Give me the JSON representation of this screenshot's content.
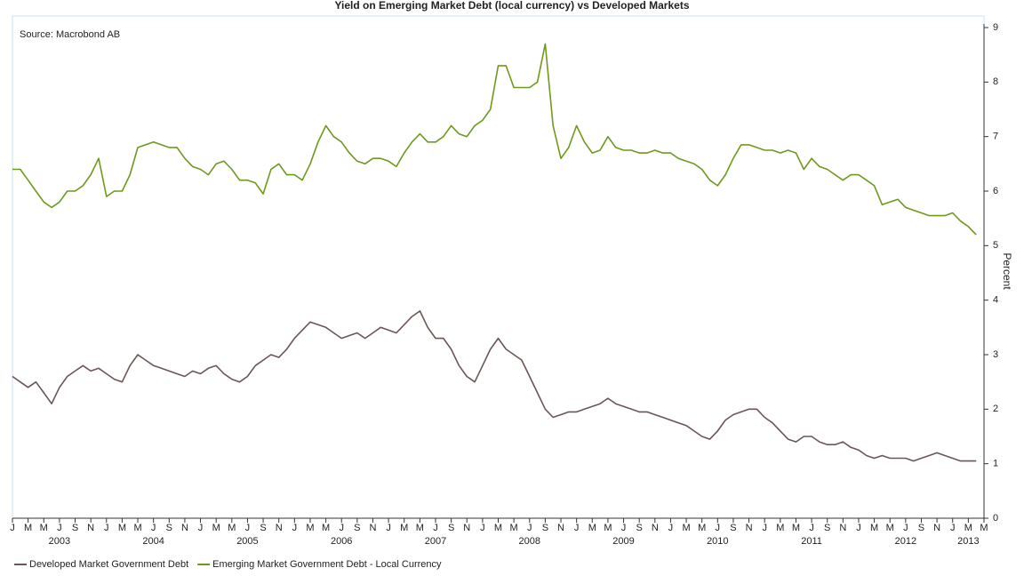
{
  "chart_data": {
    "type": "line",
    "title": "Yield on Emerging Market Debt (local currency) vs Developed Markets",
    "annotation": "Source: Macrobond AB",
    "ylabel": "Percent",
    "x": [
      "2003-01",
      "2003-02",
      "2003-03",
      "2003-04",
      "2003-05",
      "2003-06",
      "2003-07",
      "2003-08",
      "2003-09",
      "2003-10",
      "2003-11",
      "2003-12",
      "2004-01",
      "2004-02",
      "2004-03",
      "2004-04",
      "2004-05",
      "2004-06",
      "2004-07",
      "2004-08",
      "2004-09",
      "2004-10",
      "2004-11",
      "2004-12",
      "2005-01",
      "2005-02",
      "2005-03",
      "2005-04",
      "2005-05",
      "2005-06",
      "2005-07",
      "2005-08",
      "2005-09",
      "2005-10",
      "2005-11",
      "2005-12",
      "2006-01",
      "2006-02",
      "2006-03",
      "2006-04",
      "2006-05",
      "2006-06",
      "2006-07",
      "2006-08",
      "2006-09",
      "2006-10",
      "2006-11",
      "2006-12",
      "2007-01",
      "2007-02",
      "2007-03",
      "2007-04",
      "2007-05",
      "2007-06",
      "2007-07",
      "2007-08",
      "2007-09",
      "2007-10",
      "2007-11",
      "2007-12",
      "2008-01",
      "2008-02",
      "2008-03",
      "2008-04",
      "2008-05",
      "2008-06",
      "2008-07",
      "2008-08",
      "2008-09",
      "2008-10",
      "2008-11",
      "2008-12",
      "2009-01",
      "2009-02",
      "2009-03",
      "2009-04",
      "2009-05",
      "2009-06",
      "2009-07",
      "2009-08",
      "2009-09",
      "2009-10",
      "2009-11",
      "2009-12",
      "2010-01",
      "2010-02",
      "2010-03",
      "2010-04",
      "2010-05",
      "2010-06",
      "2010-07",
      "2010-08",
      "2010-09",
      "2010-10",
      "2010-11",
      "2010-12",
      "2011-01",
      "2011-02",
      "2011-03",
      "2011-04",
      "2011-05",
      "2011-06",
      "2011-07",
      "2011-08",
      "2011-09",
      "2011-10",
      "2011-11",
      "2011-12",
      "2012-01",
      "2012-02",
      "2012-03",
      "2012-04",
      "2012-05",
      "2012-06",
      "2012-07",
      "2012-08",
      "2012-09",
      "2012-10",
      "2012-11",
      "2012-12",
      "2013-01",
      "2013-02",
      "2013-03",
      "2013-04"
    ],
    "series": [
      {
        "name": "Developed Market Government Debt",
        "color": "#6b5656",
        "values": [
          2.6,
          2.5,
          2.4,
          2.5,
          2.3,
          2.1,
          2.4,
          2.6,
          2.7,
          2.8,
          2.7,
          2.75,
          2.65,
          2.55,
          2.5,
          2.8,
          3.0,
          2.9,
          2.8,
          2.75,
          2.7,
          2.65,
          2.6,
          2.7,
          2.65,
          2.75,
          2.8,
          2.65,
          2.55,
          2.5,
          2.6,
          2.8,
          2.9,
          3.0,
          2.95,
          3.1,
          3.3,
          3.45,
          3.6,
          3.55,
          3.5,
          3.4,
          3.3,
          3.35,
          3.4,
          3.3,
          3.4,
          3.5,
          3.45,
          3.4,
          3.55,
          3.7,
          3.8,
          3.5,
          3.3,
          3.3,
          3.1,
          2.8,
          2.6,
          2.5,
          2.8,
          3.1,
          3.3,
          3.1,
          3.0,
          2.9,
          2.6,
          2.3,
          2.0,
          1.85,
          1.9,
          1.95,
          1.95,
          2.0,
          2.05,
          2.1,
          2.2,
          2.1,
          2.05,
          2.0,
          1.95,
          1.95,
          1.9,
          1.85,
          1.8,
          1.75,
          1.7,
          1.6,
          1.5,
          1.45,
          1.6,
          1.8,
          1.9,
          1.95,
          2.0,
          2.0,
          1.85,
          1.75,
          1.6,
          1.45,
          1.4,
          1.5,
          1.5,
          1.4,
          1.35,
          1.35,
          1.4,
          1.3,
          1.25,
          1.15,
          1.1,
          1.15,
          1.1,
          1.1,
          1.1,
          1.05,
          1.1,
          1.15,
          1.2,
          1.15,
          1.1,
          1.05,
          1.05,
          1.05
        ]
      },
      {
        "name": "Emerging Market Government Debt - Local Currency",
        "color": "#6e9a1c",
        "values": [
          6.4,
          6.4,
          6.2,
          6.0,
          5.8,
          5.7,
          5.8,
          6.0,
          6.0,
          6.1,
          6.3,
          6.6,
          5.9,
          6.0,
          6.0,
          6.3,
          6.8,
          6.85,
          6.9,
          6.85,
          6.8,
          6.8,
          6.6,
          6.45,
          6.4,
          6.3,
          6.5,
          6.55,
          6.4,
          6.2,
          6.2,
          6.15,
          5.95,
          6.4,
          6.5,
          6.3,
          6.3,
          6.2,
          6.5,
          6.9,
          7.2,
          7.0,
          6.9,
          6.7,
          6.55,
          6.5,
          6.6,
          6.6,
          6.55,
          6.45,
          6.7,
          6.9,
          7.05,
          6.9,
          6.9,
          7.0,
          7.2,
          7.05,
          7.0,
          7.2,
          7.3,
          7.5,
          8.3,
          8.3,
          7.9,
          7.9,
          7.9,
          8.0,
          8.7,
          7.2,
          6.6,
          6.8,
          7.2,
          6.9,
          6.7,
          6.75,
          7.0,
          6.8,
          6.75,
          6.75,
          6.7,
          6.7,
          6.75,
          6.7,
          6.7,
          6.6,
          6.55,
          6.5,
          6.4,
          6.2,
          6.1,
          6.3,
          6.6,
          6.85,
          6.85,
          6.8,
          6.75,
          6.75,
          6.7,
          6.75,
          6.7,
          6.4,
          6.6,
          6.45,
          6.4,
          6.3,
          6.2,
          6.3,
          6.3,
          6.2,
          6.1,
          5.75,
          5.8,
          5.85,
          5.7,
          5.65,
          5.6,
          5.55,
          5.55,
          5.55,
          5.6,
          5.45,
          5.35,
          5.2
        ]
      }
    ],
    "xlim": [
      "2003-01",
      "2013-05"
    ],
    "xticks": [
      {
        "value": "2003-01",
        "label": "J"
      },
      {
        "value": "2003-03",
        "label": "M"
      },
      {
        "value": "2003-05",
        "label": "M"
      },
      {
        "value": "2003-07",
        "label": "J"
      },
      {
        "value": "2003-09",
        "label": "S"
      },
      {
        "value": "2003-11",
        "label": "N"
      },
      {
        "value": "2004-01",
        "label": "J"
      },
      {
        "value": "2004-03",
        "label": "M"
      },
      {
        "value": "2004-05",
        "label": "M"
      },
      {
        "value": "2004-07",
        "label": "J"
      },
      {
        "value": "2004-09",
        "label": "S"
      },
      {
        "value": "2004-11",
        "label": "N"
      },
      {
        "value": "2005-01",
        "label": "J"
      },
      {
        "value": "2005-03",
        "label": "M"
      },
      {
        "value": "2005-05",
        "label": "M"
      },
      {
        "value": "2005-07",
        "label": "J"
      },
      {
        "value": "2005-09",
        "label": "S"
      },
      {
        "value": "2005-11",
        "label": "N"
      },
      {
        "value": "2006-01",
        "label": "J"
      },
      {
        "value": "2006-03",
        "label": "M"
      },
      {
        "value": "2006-05",
        "label": "M"
      },
      {
        "value": "2006-07",
        "label": "J"
      },
      {
        "value": "2006-09",
        "label": "S"
      },
      {
        "value": "2006-11",
        "label": "N"
      },
      {
        "value": "2007-01",
        "label": "J"
      },
      {
        "value": "2007-03",
        "label": "M"
      },
      {
        "value": "2007-05",
        "label": "M"
      },
      {
        "value": "2007-07",
        "label": "J"
      },
      {
        "value": "2007-09",
        "label": "S"
      },
      {
        "value": "2007-11",
        "label": "N"
      },
      {
        "value": "2008-01",
        "label": "J"
      },
      {
        "value": "2008-03",
        "label": "M"
      },
      {
        "value": "2008-05",
        "label": "M"
      },
      {
        "value": "2008-07",
        "label": "J"
      },
      {
        "value": "2008-09",
        "label": "S"
      },
      {
        "value": "2008-11",
        "label": "N"
      },
      {
        "value": "2009-01",
        "label": "J"
      },
      {
        "value": "2009-03",
        "label": "M"
      },
      {
        "value": "2009-05",
        "label": "M"
      },
      {
        "value": "2009-07",
        "label": "J"
      },
      {
        "value": "2009-09",
        "label": "S"
      },
      {
        "value": "2009-11",
        "label": "N"
      },
      {
        "value": "2010-01",
        "label": "J"
      },
      {
        "value": "2010-03",
        "label": "M"
      },
      {
        "value": "2010-05",
        "label": "M"
      },
      {
        "value": "2010-07",
        "label": "J"
      },
      {
        "value": "2010-09",
        "label": "S"
      },
      {
        "value": "2010-11",
        "label": "N"
      },
      {
        "value": "2011-01",
        "label": "J"
      },
      {
        "value": "2011-03",
        "label": "M"
      },
      {
        "value": "2011-05",
        "label": "M"
      },
      {
        "value": "2011-07",
        "label": "J"
      },
      {
        "value": "2011-09",
        "label": "S"
      },
      {
        "value": "2011-11",
        "label": "N"
      },
      {
        "value": "2012-01",
        "label": "J"
      },
      {
        "value": "2012-03",
        "label": "M"
      },
      {
        "value": "2012-05",
        "label": "M"
      },
      {
        "value": "2012-07",
        "label": "J"
      },
      {
        "value": "2012-09",
        "label": "S"
      },
      {
        "value": "2012-11",
        "label": "N"
      },
      {
        "value": "2013-01",
        "label": "J"
      },
      {
        "value": "2013-03",
        "label": "M"
      },
      {
        "value": "2013-05",
        "label": "M"
      }
    ],
    "year_labels": [
      {
        "value": "2003-07",
        "label": "2003"
      },
      {
        "value": "2004-07",
        "label": "2004"
      },
      {
        "value": "2005-07",
        "label": "2005"
      },
      {
        "value": "2006-07",
        "label": "2006"
      },
      {
        "value": "2007-07",
        "label": "2007"
      },
      {
        "value": "2008-07",
        "label": "2008"
      },
      {
        "value": "2009-07",
        "label": "2009"
      },
      {
        "value": "2010-07",
        "label": "2010"
      },
      {
        "value": "2011-07",
        "label": "2011"
      },
      {
        "value": "2012-07",
        "label": "2012"
      },
      {
        "value": "2013-03",
        "label": "2013"
      }
    ],
    "ylim": [
      0,
      9
    ],
    "yticks": [
      0,
      1,
      2,
      3,
      4,
      5,
      6,
      7,
      8,
      9
    ],
    "legend": "bottom-left"
  }
}
